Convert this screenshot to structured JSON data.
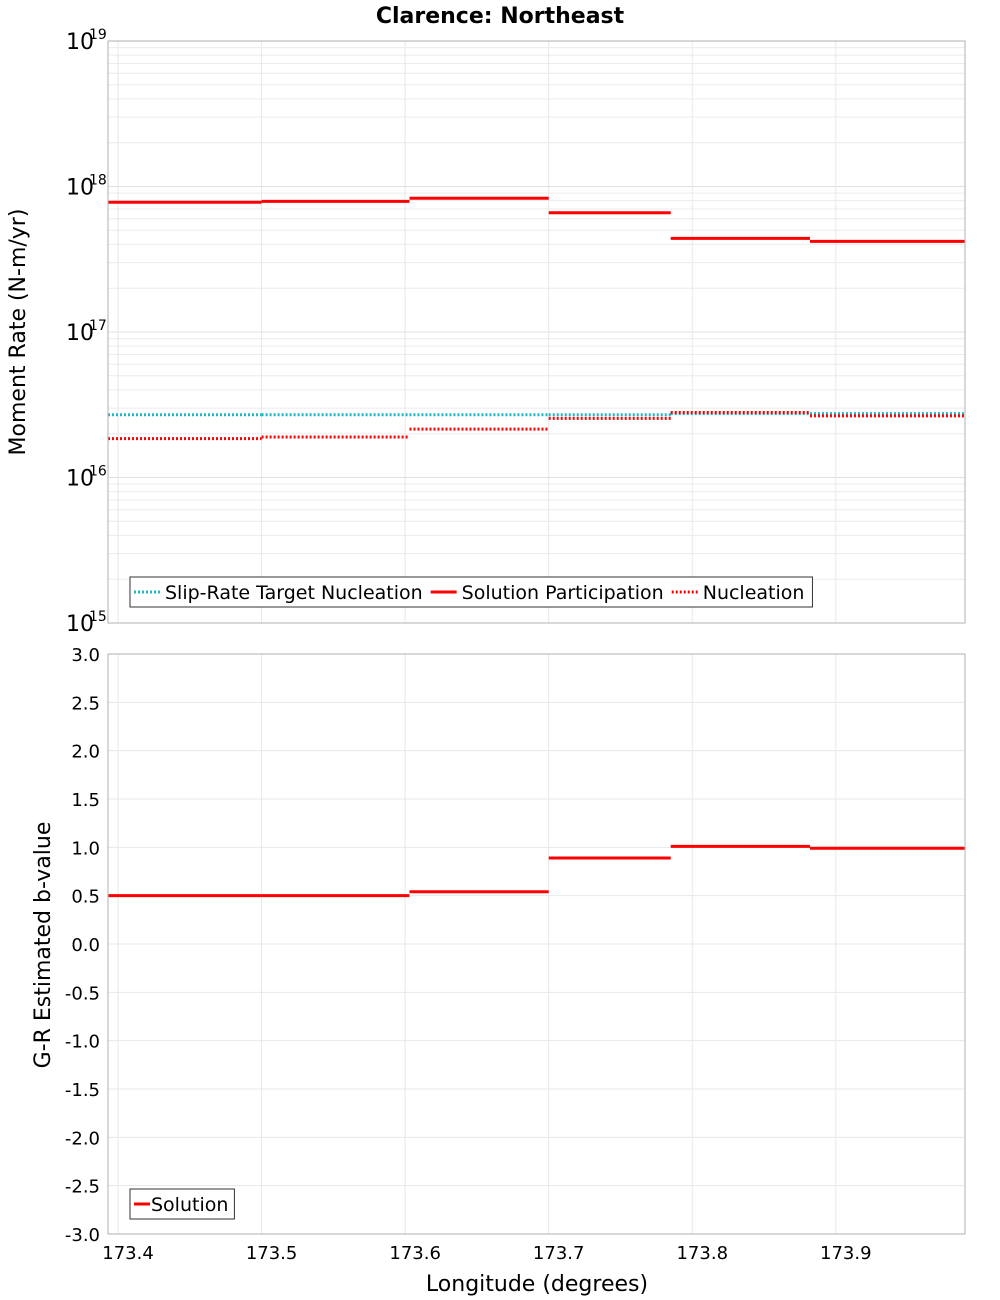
{
  "chart_data": [
    {
      "type": "line",
      "title": "Clarence: Northeast",
      "ylabel": "Moment Rate (N-m/yr)",
      "xlabel": "",
      "xlim": [
        173.393,
        173.99
      ],
      "ylim": [
        1000000000000000.0,
        1e+19
      ],
      "yscale": "log",
      "x_ticks": [
        "173.4",
        "173.5",
        "173.6",
        "173.7",
        "173.8",
        "173.9"
      ],
      "x_tick_values": [
        173.4,
        173.5,
        173.6,
        173.7,
        173.8,
        173.9
      ],
      "y_ticks": [
        {
          "base": "10",
          "exp": "15",
          "value": 1000000000000000.0
        },
        {
          "base": "10",
          "exp": "16",
          "value": 1e+16
        },
        {
          "base": "10",
          "exp": "17",
          "value": 1e+17
        },
        {
          "base": "10",
          "exp": "18",
          "value": 1e+18
        },
        {
          "base": "10",
          "exp": "19",
          "value": 1e+19
        }
      ],
      "legend_position": "bottom-left",
      "series": [
        {
          "name": "Slip-Rate Target Nucleation",
          "style": "dotted",
          "color": "#22b7c4",
          "segments": [
            {
              "x0": 173.393,
              "x1": 173.5,
              "y": 2.7e+16
            },
            {
              "x0": 173.5,
              "x1": 173.603,
              "y": 2.7e+16
            },
            {
              "x0": 173.603,
              "x1": 173.7,
              "y": 2.7e+16
            },
            {
              "x0": 173.7,
              "x1": 173.785,
              "y": 2.7e+16
            },
            {
              "x0": 173.785,
              "x1": 173.882,
              "y": 2.75e+16
            },
            {
              "x0": 173.882,
              "x1": 173.99,
              "y": 2.75e+16
            }
          ]
        },
        {
          "name": "Solution Participation",
          "style": "solid",
          "color": "#ff0000",
          "segments": [
            {
              "x0": 173.393,
              "x1": 173.5,
              "y": 7.8e+17
            },
            {
              "x0": 173.5,
              "x1": 173.603,
              "y": 7.9e+17
            },
            {
              "x0": 173.603,
              "x1": 173.7,
              "y": 8.3e+17
            },
            {
              "x0": 173.7,
              "x1": 173.785,
              "y": 6.6e+17
            },
            {
              "x0": 173.785,
              "x1": 173.882,
              "y": 4.4e+17
            },
            {
              "x0": 173.882,
              "x1": 173.99,
              "y": 4.2e+17
            }
          ]
        },
        {
          "name": "Nucleation",
          "style": "dotted",
          "color": "#ff0000",
          "segments": [
            {
              "x0": 173.393,
              "x1": 173.5,
              "y": 1.85e+16
            },
            {
              "x0": 173.5,
              "x1": 173.603,
              "y": 1.9e+16
            },
            {
              "x0": 173.603,
              "x1": 173.7,
              "y": 2.15e+16
            },
            {
              "x0": 173.7,
              "x1": 173.785,
              "y": 2.55e+16
            },
            {
              "x0": 173.785,
              "x1": 173.882,
              "y": 2.8e+16
            },
            {
              "x0": 173.882,
              "x1": 173.99,
              "y": 2.65e+16
            }
          ]
        }
      ]
    },
    {
      "type": "line",
      "title": "",
      "ylabel": "G-R Estimated b-value",
      "xlabel": "Longitude (degrees)",
      "xlim": [
        173.393,
        173.99
      ],
      "ylim": [
        -3.0,
        3.0
      ],
      "x_ticks": [
        "173.4",
        "173.5",
        "173.6",
        "173.7",
        "173.8",
        "173.9"
      ],
      "x_tick_values": [
        173.4,
        173.5,
        173.6,
        173.7,
        173.8,
        173.9
      ],
      "y_ticks": [
        "3.0",
        "2.5",
        "2.0",
        "1.5",
        "1.0",
        "0.5",
        "0.0",
        "-0.5",
        "-1.0",
        "-1.5",
        "-2.0",
        "-2.5",
        "-3.0"
      ],
      "y_tick_values": [
        3.0,
        2.5,
        2.0,
        1.5,
        1.0,
        0.5,
        0.0,
        -0.5,
        -1.0,
        -1.5,
        -2.0,
        -2.5,
        -3.0
      ],
      "legend_position": "bottom-left",
      "series": [
        {
          "name": "Solution",
          "style": "solid",
          "color": "#ff0000",
          "segments": [
            {
              "x0": 173.393,
              "x1": 173.5,
              "y": 0.5
            },
            {
              "x0": 173.5,
              "x1": 173.603,
              "y": 0.5
            },
            {
              "x0": 173.603,
              "x1": 173.7,
              "y": 0.54
            },
            {
              "x0": 173.7,
              "x1": 173.785,
              "y": 0.89
            },
            {
              "x0": 173.785,
              "x1": 173.882,
              "y": 1.01
            },
            {
              "x0": 173.882,
              "x1": 173.99,
              "y": 0.99
            }
          ]
        }
      ]
    }
  ]
}
